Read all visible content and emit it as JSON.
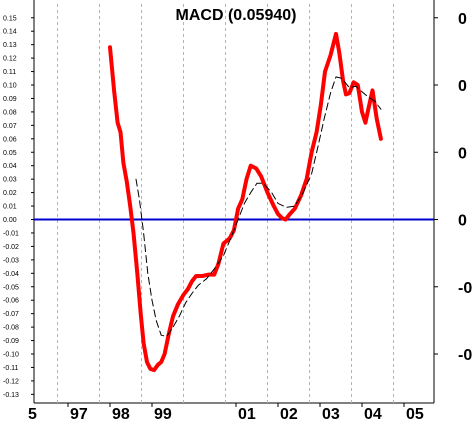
{
  "chart_data": {
    "type": "line",
    "title": "MACD (0.05940)",
    "xlabel": "",
    "ylabel": "",
    "ylim": [
      -0.135,
      0.17
    ],
    "xlim": [
      1996.2,
      2005.9
    ],
    "grid": true,
    "y_ticks": [
      0.15,
      0.14,
      0.13,
      0.12,
      0.11,
      0.1,
      0.09,
      0.08,
      0.07,
      0.06,
      0.05,
      0.04,
      0.03,
      0.02,
      0.01,
      0.0,
      -0.01,
      -0.02,
      -0.03,
      -0.04,
      -0.05,
      -0.06,
      -0.07,
      -0.08,
      -0.09,
      -0.1,
      -0.11,
      -0.12,
      -0.13
    ],
    "y_tick_labels": [
      "0.15",
      "0.14",
      "0.13",
      "0.12",
      "0.11",
      "0.10",
      "0.09",
      "0.08",
      "0.07",
      "0.06",
      "0.05",
      "0.04",
      "0.03",
      "0.02",
      "0.01",
      "0.00",
      "-0.01",
      "-0.02",
      "-0.03",
      "-0.04",
      "-0.05",
      "-0.06",
      "-0.07",
      "-0.08",
      "-0.09",
      "-0.10",
      "-0.11",
      "-0.12",
      "-0.13"
    ],
    "right_ticks": [
      0.15,
      0.1,
      0.05,
      0.0,
      -0.05,
      -0.1
    ],
    "right_tick_labels": [
      "0",
      "0",
      "0",
      "0",
      "-0",
      "-0"
    ],
    "x_ticks": [
      {
        "x": 1996.0,
        "label": "5"
      },
      {
        "x": 1997.0,
        "label": "97"
      },
      {
        "x": 1998.0,
        "label": "98"
      },
      {
        "x": 1999.0,
        "label": "99"
      },
      {
        "x": 2001.0,
        "label": "01"
      },
      {
        "x": 2002.0,
        "label": "02"
      },
      {
        "x": 2003.0,
        "label": "03"
      },
      {
        "x": 2004.0,
        "label": "04"
      },
      {
        "x": 2005.0,
        "label": "05"
      }
    ],
    "grid_x": [
      1996.75,
      1997.75,
      1998.75,
      1999.75,
      2000.75,
      2001.75,
      2002.75,
      2003.75,
      2004.75,
      2005.75
    ],
    "zero_line": 0.0,
    "series": [
      {
        "name": "",
        "color": "#ff0000",
        "style": "solid-thick",
        "points": [
          [
            1998.0,
            0.128
          ],
          [
            1998.1,
            0.095
          ],
          [
            1998.18,
            0.072
          ],
          [
            1998.25,
            0.065
          ],
          [
            1998.32,
            0.042
          ],
          [
            1998.4,
            0.028
          ],
          [
            1998.48,
            0.01
          ],
          [
            1998.56,
            -0.01
          ],
          [
            1998.65,
            -0.04
          ],
          [
            1998.73,
            -0.07
          ],
          [
            1998.8,
            -0.092
          ],
          [
            1998.88,
            -0.106
          ],
          [
            1998.96,
            -0.111
          ],
          [
            1999.05,
            -0.112
          ],
          [
            1999.14,
            -0.108
          ],
          [
            1999.22,
            -0.106
          ],
          [
            1999.3,
            -0.1
          ],
          [
            1999.4,
            -0.085
          ],
          [
            1999.5,
            -0.072
          ],
          [
            1999.62,
            -0.063
          ],
          [
            1999.75,
            -0.056
          ],
          [
            1999.85,
            -0.052
          ],
          [
            1999.95,
            -0.046
          ],
          [
            2000.05,
            -0.042
          ],
          [
            2000.2,
            -0.042
          ],
          [
            2000.35,
            -0.041
          ],
          [
            2000.48,
            -0.041
          ],
          [
            2000.58,
            -0.033
          ],
          [
            2000.7,
            -0.018
          ],
          [
            2000.85,
            -0.014
          ],
          [
            2000.95,
            -0.008
          ],
          [
            2001.05,
            0.008
          ],
          [
            2001.15,
            0.015
          ],
          [
            2001.25,
            0.03
          ],
          [
            2001.35,
            0.04
          ],
          [
            2001.48,
            0.038
          ],
          [
            2001.6,
            0.032
          ],
          [
            2001.75,
            0.02
          ],
          [
            2001.9,
            0.01
          ],
          [
            2002.0,
            0.004
          ],
          [
            2002.1,
            0.001
          ],
          [
            2002.18,
            0.0
          ],
          [
            2002.28,
            0.004
          ],
          [
            2002.4,
            0.008
          ],
          [
            2002.55,
            0.018
          ],
          [
            2002.68,
            0.03
          ],
          [
            2002.8,
            0.05
          ],
          [
            2002.92,
            0.065
          ],
          [
            2003.02,
            0.085
          ],
          [
            2003.12,
            0.11
          ],
          [
            2003.25,
            0.122
          ],
          [
            2003.38,
            0.138
          ],
          [
            2003.46,
            0.124
          ],
          [
            2003.55,
            0.103
          ],
          [
            2003.62,
            0.093
          ],
          [
            2003.7,
            0.094
          ],
          [
            2003.8,
            0.102
          ],
          [
            2003.9,
            0.1
          ],
          [
            2004.0,
            0.08
          ],
          [
            2004.08,
            0.072
          ],
          [
            2004.15,
            0.082
          ],
          [
            2004.25,
            0.096
          ],
          [
            2004.35,
            0.075
          ],
          [
            2004.45,
            0.06
          ]
        ]
      },
      {
        "name": "",
        "color": "#000000",
        "style": "dashed",
        "points": [
          [
            1998.62,
            0.03
          ],
          [
            1998.7,
            0.015
          ],
          [
            1998.8,
            -0.01
          ],
          [
            1998.9,
            -0.04
          ],
          [
            1999.0,
            -0.06
          ],
          [
            1999.1,
            -0.075
          ],
          [
            1999.22,
            -0.086
          ],
          [
            1999.35,
            -0.087
          ],
          [
            1999.5,
            -0.08
          ],
          [
            1999.65,
            -0.072
          ],
          [
            1999.8,
            -0.062
          ],
          [
            1999.95,
            -0.055
          ],
          [
            2000.1,
            -0.049
          ],
          [
            2000.3,
            -0.044
          ],
          [
            2000.5,
            -0.036
          ],
          [
            2000.7,
            -0.027
          ],
          [
            2000.9,
            -0.012
          ],
          [
            2001.05,
            0.0
          ],
          [
            2001.2,
            0.012
          ],
          [
            2001.35,
            0.02
          ],
          [
            2001.5,
            0.027
          ],
          [
            2001.65,
            0.027
          ],
          [
            2001.85,
            0.02
          ],
          [
            2002.0,
            0.012
          ],
          [
            2002.2,
            0.009
          ],
          [
            2002.4,
            0.01
          ],
          [
            2002.6,
            0.02
          ],
          [
            2002.8,
            0.034
          ],
          [
            2002.95,
            0.054
          ],
          [
            2003.1,
            0.075
          ],
          [
            2003.25,
            0.094
          ],
          [
            2003.38,
            0.106
          ],
          [
            2003.52,
            0.105
          ],
          [
            2003.7,
            0.098
          ],
          [
            2003.85,
            0.099
          ],
          [
            2004.0,
            0.095
          ],
          [
            2004.15,
            0.091
          ],
          [
            2004.3,
            0.088
          ],
          [
            2004.45,
            0.082
          ]
        ]
      }
    ]
  }
}
